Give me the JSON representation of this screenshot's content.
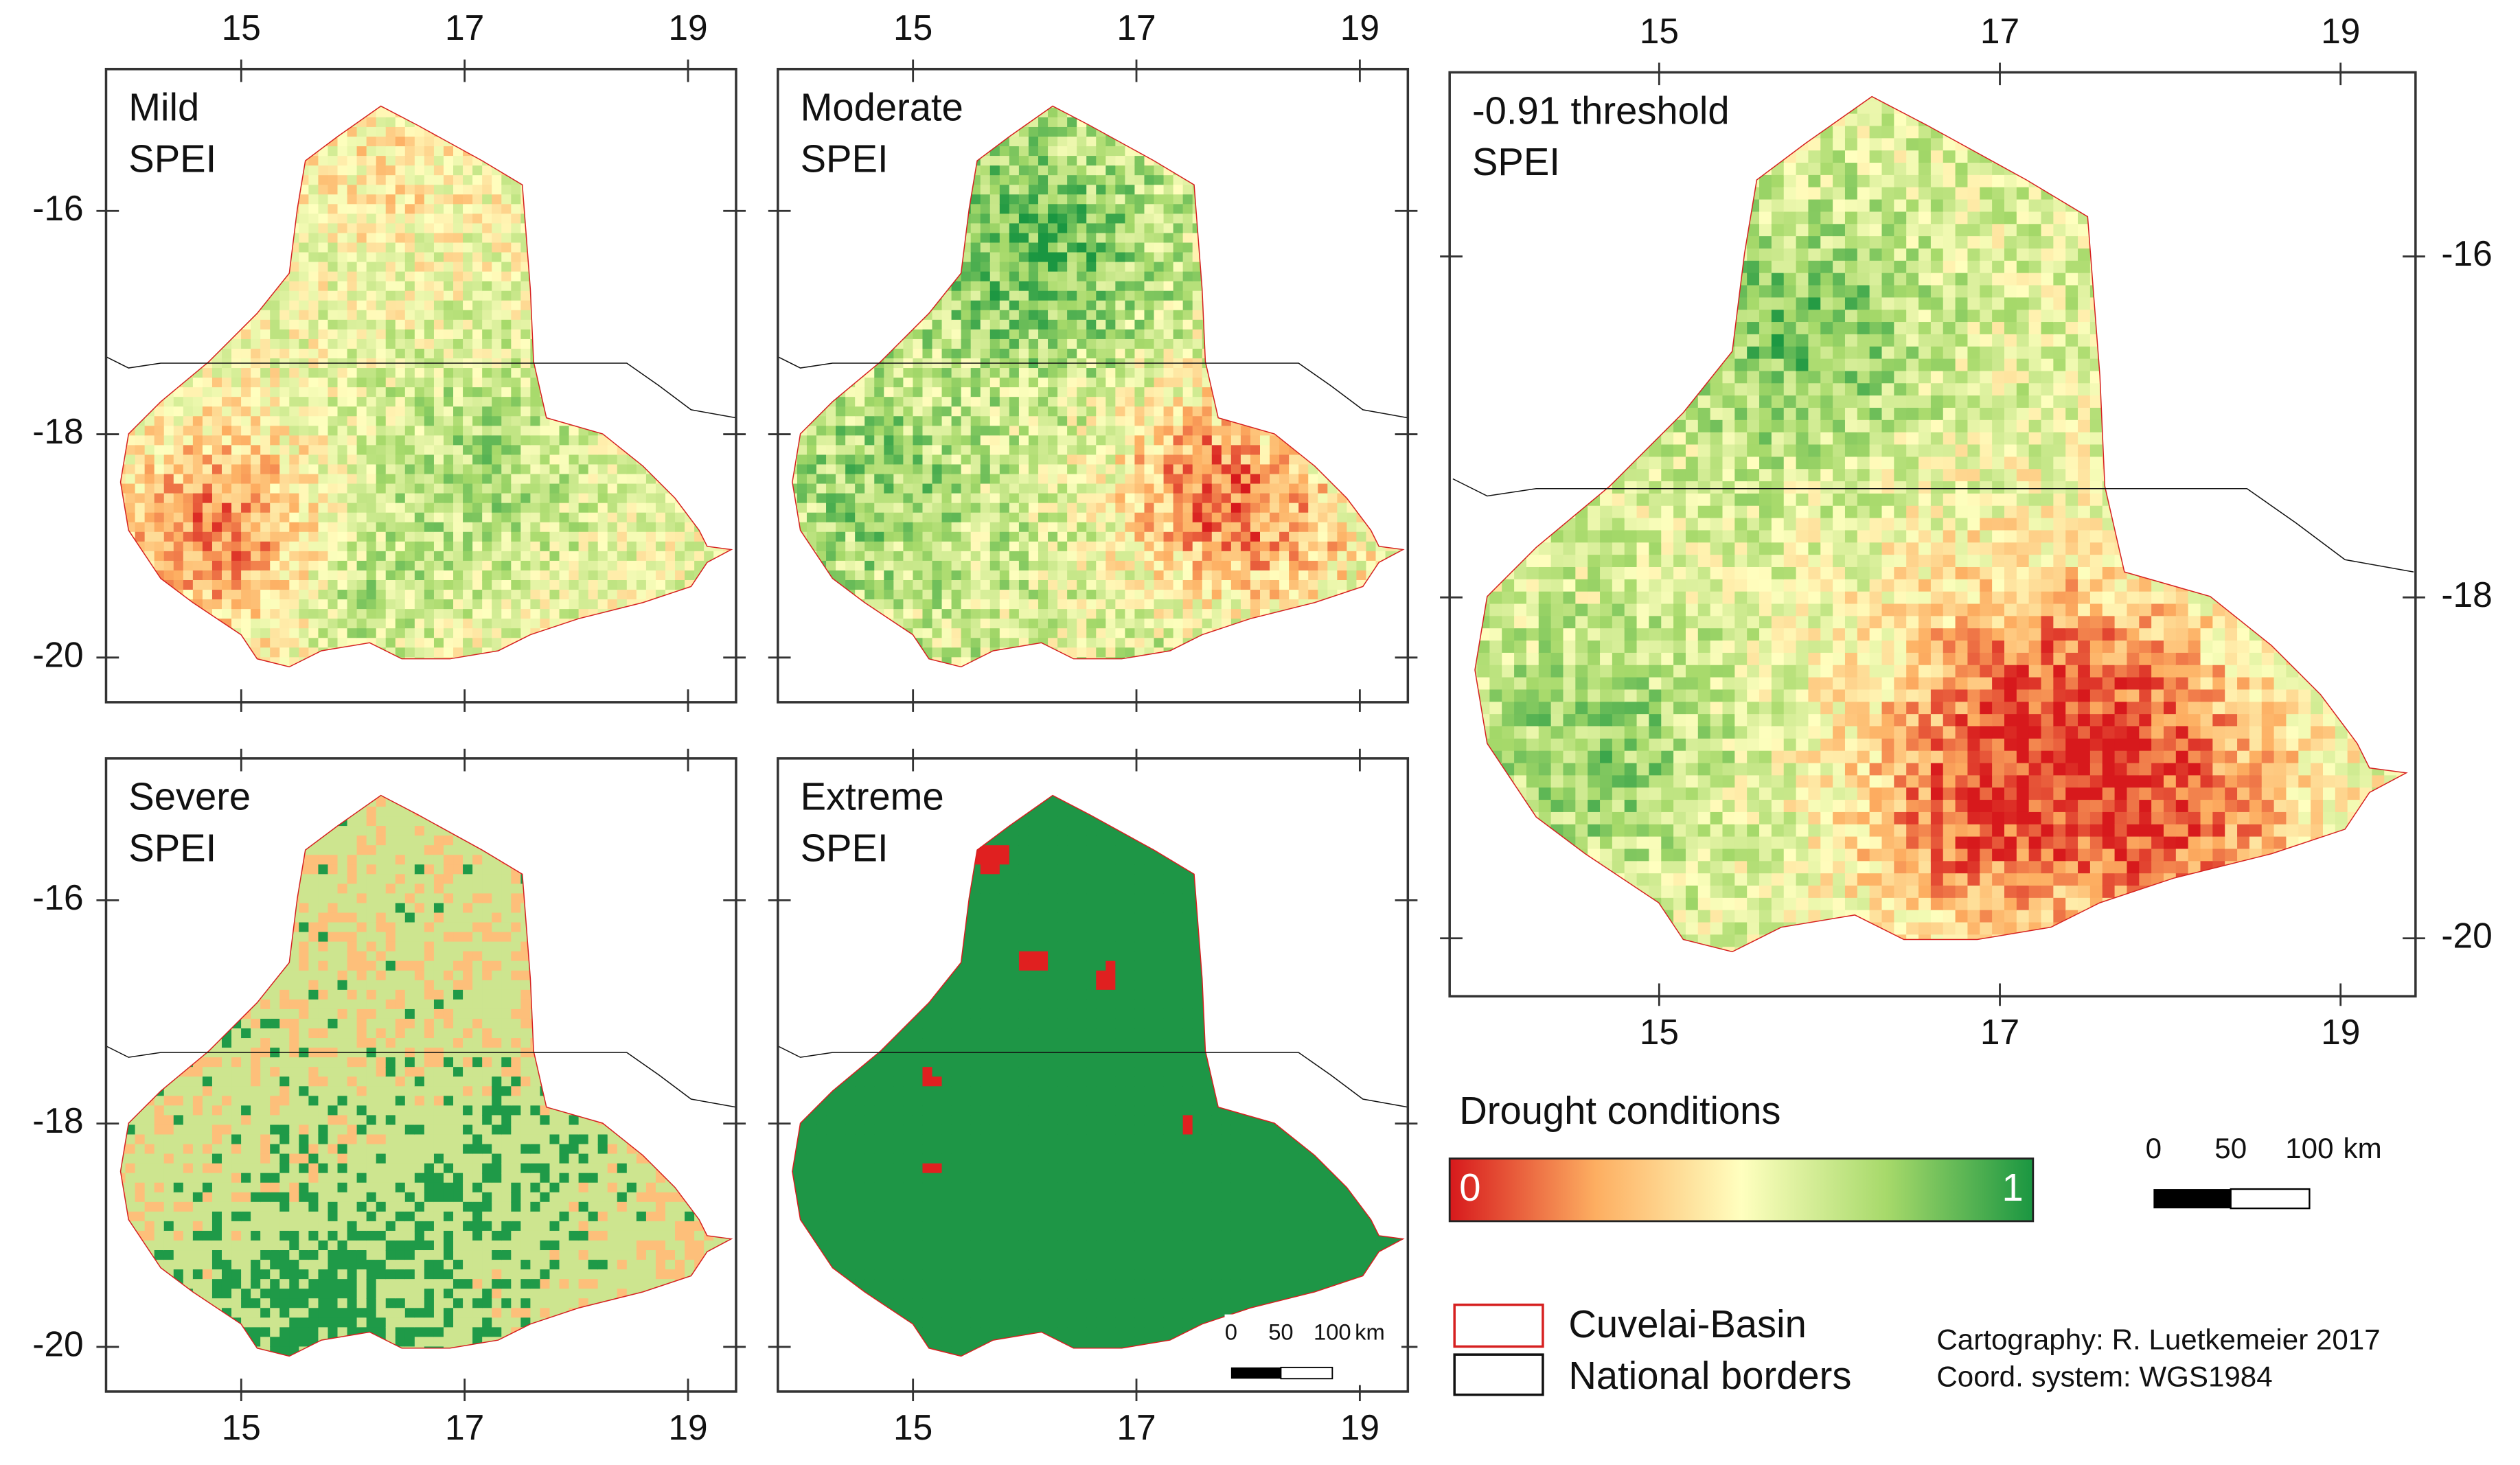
{
  "maps": [
    {
      "title": [
        "Mild",
        "SPEI"
      ],
      "xlim": [
        13.79,
        19.43
      ],
      "ylim": [
        -20.4,
        -14.73
      ],
      "xticks": [
        15,
        17,
        19
      ],
      "yticks": [
        -16,
        -18,
        -20
      ]
    },
    {
      "title": [
        "Moderate",
        "SPEI"
      ],
      "xlim": [
        13.79,
        19.43
      ],
      "ylim": [
        -20.4,
        -14.73
      ],
      "xticks": [
        15,
        17,
        19
      ],
      "yticks": [
        -16,
        -18,
        -20
      ]
    },
    {
      "title": [
        "Severe",
        "SPEI"
      ],
      "xlim": [
        13.79,
        19.43
      ],
      "ylim": [
        -20.4,
        -14.73
      ],
      "xticks": [
        15,
        17,
        19
      ],
      "yticks": [
        -16,
        -18,
        -20
      ]
    },
    {
      "title": [
        "Extreme",
        "SPEI"
      ],
      "xlim": [
        13.79,
        19.43
      ],
      "ylim": [
        -20.4,
        -14.73
      ],
      "xticks": [
        15,
        17,
        19
      ],
      "yticks": [
        -16,
        -18,
        -20
      ]
    },
    {
      "title": [
        "-0.91 threshold",
        "SPEI"
      ],
      "xlim": [
        13.77,
        19.44
      ],
      "ylim": [
        -20.34,
        -14.92
      ],
      "xticks": [
        15,
        17,
        19
      ],
      "yticks": [
        -16,
        -18,
        -20
      ]
    }
  ],
  "legend": {
    "title": "Drought conditions",
    "min": 0,
    "max": 1,
    "items": [
      "Cuvelai-Basin",
      "National borders"
    ]
  },
  "scale_bar": {
    "ticks": [
      0,
      50,
      100
    ],
    "unit": "km"
  },
  "credits": [
    "Cartography: R. Luetkemeier 2017",
    "Coord. system: WGS1984"
  ]
}
